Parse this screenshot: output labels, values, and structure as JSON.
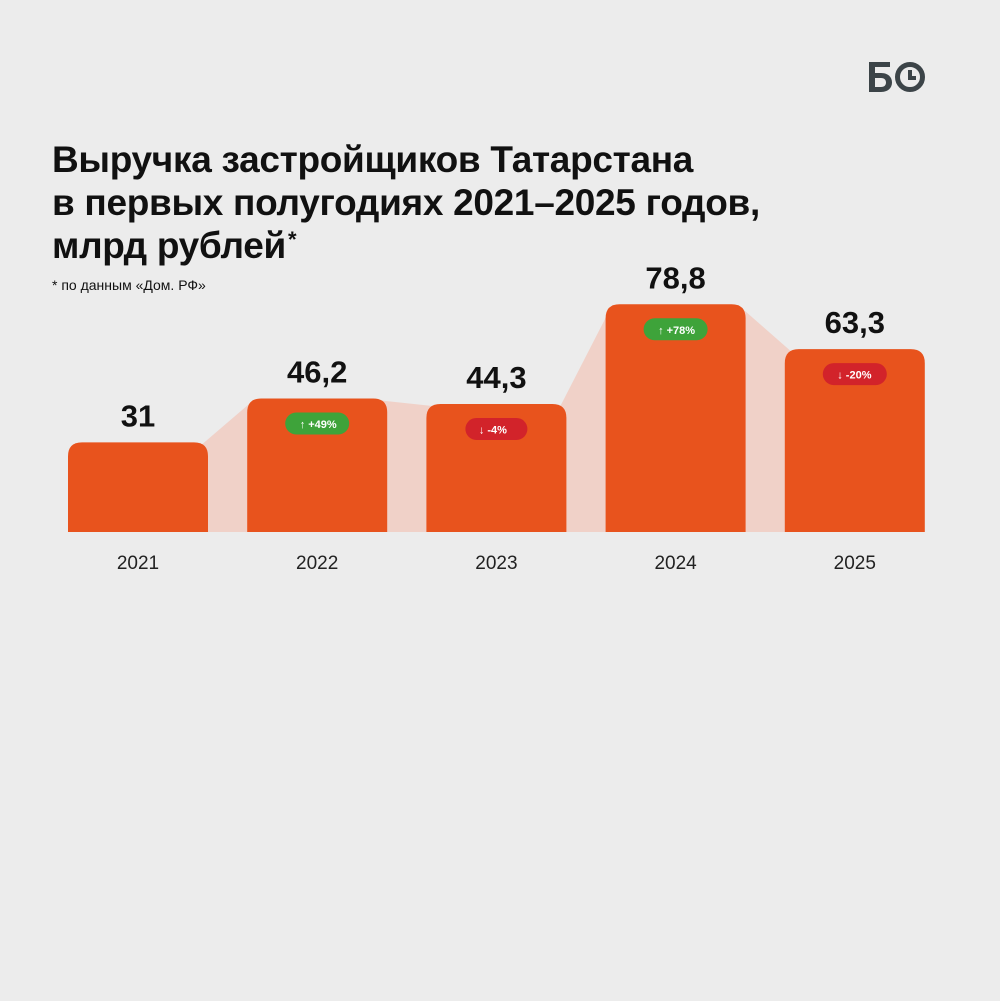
{
  "brand": {
    "logo_text": "БО"
  },
  "title": {
    "line1": "Выручка застройщиков Татарстана",
    "line2": "в первых полугодиях 2021–2025 годов,",
    "line3": "млрд рублей",
    "footnote_mark": "*"
  },
  "footnote": "* по данным «Дом. РФ»",
  "colors": {
    "background": "#ececec",
    "bar": "#e8531d",
    "connector": "#f0d1c8",
    "badge_up": "#3ea33a",
    "badge_down": "#d2232a",
    "text": "#111111"
  },
  "chart_data": {
    "type": "bar",
    "categories": [
      "2021",
      "2022",
      "2023",
      "2024",
      "2025"
    ],
    "values": [
      31,
      46.2,
      44.3,
      78.8,
      63.3
    ],
    "value_labels": [
      "31",
      "46,2",
      "44,3",
      "78,8",
      "63,3"
    ],
    "changes": [
      null,
      {
        "direction": "up",
        "text": "+49%"
      },
      {
        "direction": "down",
        "text": "-4%"
      },
      {
        "direction": "up",
        "text": "+78%"
      },
      {
        "direction": "down",
        "text": "-20%"
      }
    ],
    "title": "Выручка застройщиков Татарстана в первых полугодиях 2021–2025 годов, млрд рублей",
    "xlabel": "",
    "ylabel": "",
    "ylim": [
      0,
      80
    ],
    "grid": false
  }
}
